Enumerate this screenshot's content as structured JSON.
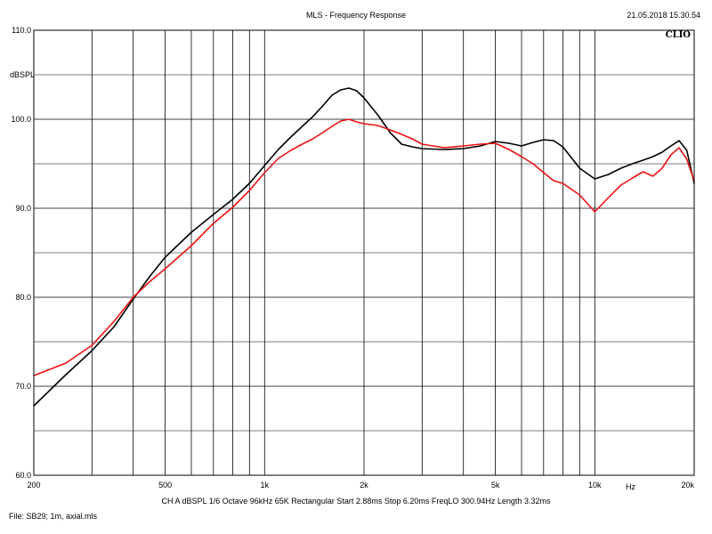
{
  "header": {
    "title": "MLS - Frequency Response",
    "timestamp": "21.05.2018 15.30.54",
    "brand": "CLIO"
  },
  "footer": {
    "settings": "CH A   dBSPL   1/6 Octave   96kHz   65K   Rectangular   Start 2.88ms    Stop 6.20ms    FreqLO 300.94Hz    Length 3.32ms",
    "file": "File: SB29; 1m, axial.mls"
  },
  "chart_data": {
    "type": "line",
    "ylabel": "dBSPL",
    "xunit_label": "Hz",
    "xscale": "log",
    "xlim": [
      200,
      20000
    ],
    "ylim": [
      60,
      110
    ],
    "grid": true,
    "y_ticks": [
      {
        "value": 60,
        "label": "60.0"
      },
      {
        "value": 70,
        "label": "70.0"
      },
      {
        "value": 80,
        "label": "80.0"
      },
      {
        "value": 90,
        "label": "90.0"
      },
      {
        "value": 100,
        "label": "100.0"
      },
      {
        "value": 110,
        "label": "110.0"
      }
    ],
    "y_minor_ticks": [
      65,
      75,
      85,
      95,
      105
    ],
    "x_ticks": [
      {
        "value": 200,
        "label": "200"
      },
      {
        "value": 500,
        "label": "500"
      },
      {
        "value": 1000,
        "label": "1k"
      },
      {
        "value": 2000,
        "label": "2k"
      },
      {
        "value": 5000,
        "label": "5k"
      },
      {
        "value": 10000,
        "label": "10k"
      },
      {
        "value": 20000,
        "label": "20k"
      }
    ],
    "x_gridlines": [
      200,
      300,
      400,
      500,
      600,
      700,
      800,
      900,
      1000,
      2000,
      3000,
      4000,
      5000,
      6000,
      7000,
      8000,
      9000,
      10000,
      20000
    ],
    "series": [
      {
        "color": "#000000",
        "x": [
          200,
          250,
          300,
          350,
          400,
          450,
          500,
          600,
          700,
          800,
          900,
          1000,
          1100,
          1200,
          1300,
          1400,
          1500,
          1600,
          1700,
          1800,
          1900,
          2000,
          2200,
          2400,
          2600,
          2800,
          3000,
          3500,
          4000,
          4500,
          5000,
          5500,
          6000,
          6500,
          7000,
          7500,
          8000,
          9000,
          10000,
          11000,
          12000,
          13000,
          14000,
          15000,
          16000,
          17000,
          18000,
          19000,
          20000
        ],
        "y": [
          67.8,
          71.3,
          74.0,
          76.7,
          79.8,
          82.4,
          84.5,
          87.3,
          89.3,
          91.0,
          92.8,
          94.8,
          96.6,
          98.0,
          99.2,
          100.3,
          101.5,
          102.7,
          103.3,
          103.5,
          103.2,
          102.4,
          100.5,
          98.5,
          97.2,
          96.9,
          96.7,
          96.6,
          96.7,
          97.0,
          97.5,
          97.3,
          97.0,
          97.4,
          97.7,
          97.6,
          96.9,
          94.5,
          93.3,
          93.8,
          94.5,
          95.0,
          95.4,
          95.8,
          96.3,
          97.0,
          97.6,
          96.5,
          92.8
        ]
      },
      {
        "color": "#ee1111",
        "x": [
          200,
          250,
          300,
          350,
          400,
          450,
          500,
          600,
          700,
          800,
          900,
          1000,
          1100,
          1200,
          1300,
          1400,
          1500,
          1600,
          1700,
          1800,
          1900,
          2000,
          2200,
          2400,
          2600,
          2800,
          3000,
          3500,
          4000,
          4500,
          5000,
          5500,
          6000,
          6500,
          7000,
          7500,
          8000,
          9000,
          10000,
          11000,
          12000,
          13000,
          14000,
          15000,
          16000,
          17000,
          18000,
          19000,
          20000
        ],
        "y": [
          71.2,
          72.6,
          74.6,
          77.3,
          80.0,
          81.8,
          83.2,
          85.8,
          88.3,
          90.1,
          92.0,
          94.0,
          95.6,
          96.5,
          97.2,
          97.8,
          98.5,
          99.2,
          99.8,
          100.0,
          99.7,
          99.5,
          99.3,
          98.8,
          98.3,
          97.8,
          97.2,
          96.8,
          97.0,
          97.2,
          97.3,
          96.6,
          95.8,
          95.0,
          94.0,
          93.1,
          92.8,
          91.5,
          89.6,
          91.2,
          92.6,
          93.4,
          94.1,
          93.6,
          94.5,
          96.0,
          96.8,
          95.5,
          93.1
        ]
      }
    ]
  }
}
